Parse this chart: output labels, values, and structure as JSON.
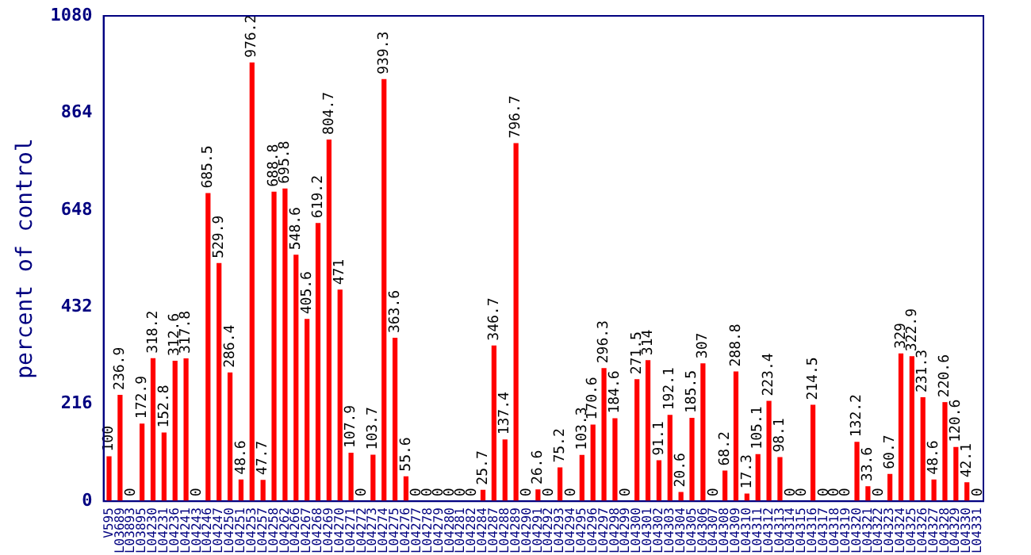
{
  "chart_data": {
    "type": "bar",
    "ylabel": "percent of control",
    "categories": [
      "V595",
      "L03689",
      "L03893",
      "L03895",
      "L04230",
      "L04231",
      "L04236",
      "L04241",
      "L04243",
      "L04246",
      "L04247",
      "L04250",
      "L04251",
      "L04253",
      "L04257",
      "L04258",
      "L04262",
      "L04266",
      "L04267",
      "L04268",
      "L04269",
      "L04270",
      "L04271",
      "L04272",
      "L04273",
      "L04274",
      "L04275",
      "L04276",
      "L04277",
      "L04278",
      "L04279",
      "L04280",
      "L04281",
      "L04282",
      "L04284",
      "L04287",
      "L04288",
      "L04289",
      "L04290",
      "L04291",
      "L04292",
      "L04293",
      "L04294",
      "L04295",
      "L04296",
      "L04297",
      "L04298",
      "L04299",
      "L04300",
      "L04301",
      "L04302",
      "L04303",
      "L04304",
      "L04305",
      "L04306",
      "L04307",
      "L04308",
      "L04309",
      "L04310",
      "L04311",
      "L04312",
      "L04313",
      "L04314",
      "L04315",
      "L04316",
      "L04317",
      "L04318",
      "L04319",
      "L04320",
      "L04321",
      "L04322",
      "L04323",
      "L04324",
      "L04325",
      "L04326",
      "L04327",
      "L04328",
      "L04329",
      "L04330",
      "L04331"
    ],
    "values": [
      100,
      236.9,
      0,
      172.9,
      318.2,
      152.8,
      312.6,
      317.8,
      0,
      685.5,
      529.9,
      286.4,
      48.6,
      976.2,
      47.7,
      688.8,
      695.8,
      548.6,
      405.6,
      619.2,
      804.7,
      471,
      107.9,
      0,
      103.7,
      939.3,
      363.6,
      55.6,
      0,
      0,
      0,
      0,
      0,
      0,
      25.7,
      346.7,
      137.4,
      796.7,
      0,
      26.6,
      0,
      75.2,
      0,
      103.3,
      170.6,
      296.3,
      184.6,
      0,
      271.5,
      314,
      91.1,
      192.1,
      20.6,
      185.5,
      307,
      0,
      68.2,
      288.8,
      17.3,
      105.1,
      223.4,
      98.1,
      0,
      0,
      214.5,
      0,
      0,
      0,
      132.2,
      33.6,
      0,
      60.7,
      329,
      322.9,
      231.3,
      48.6,
      220.6,
      120.6,
      42.1,
      0
    ],
    "color": "#ff0000",
    "ylim": [
      0,
      1080
    ],
    "yticks": [
      0,
      216,
      432,
      648,
      864,
      1080
    ],
    "grid": false,
    "legend": false,
    "data_labels": true
  }
}
